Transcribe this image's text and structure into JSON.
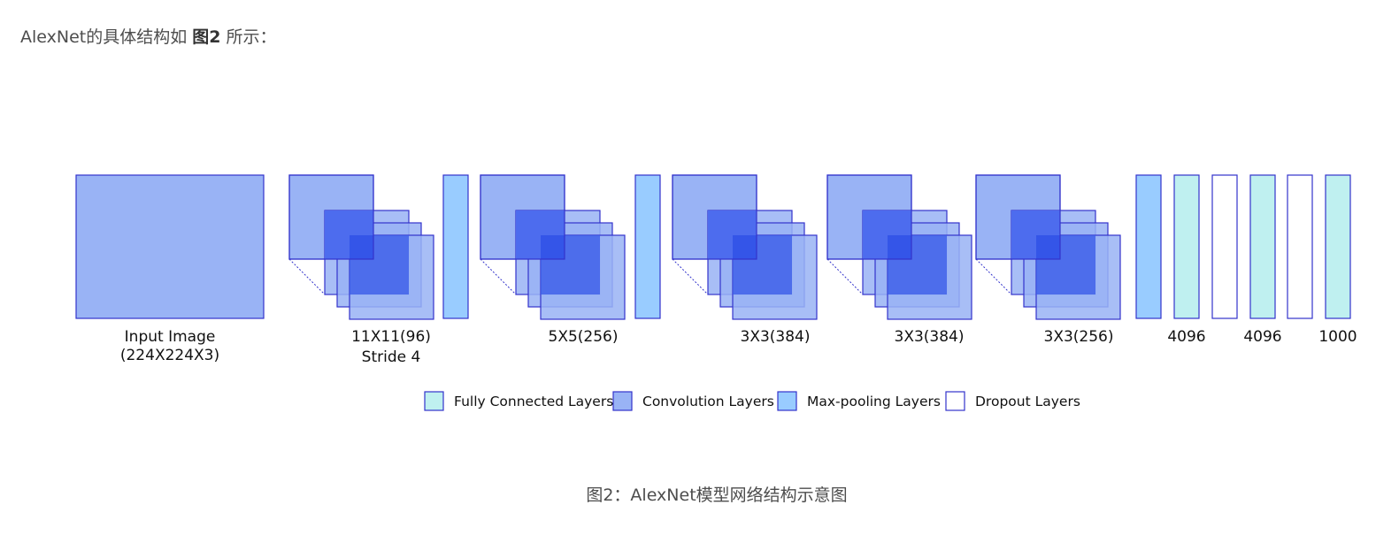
{
  "intro": {
    "prefix": "AlexNet的具体结构如 ",
    "figure_ref": "图2",
    "suffix": " 所示："
  },
  "colors": {
    "conv_fill": "#99b3f5",
    "conv_stroke": "#3333cc",
    "pool_fill": "#99ccff",
    "fc_fill": "#bff0f0",
    "dropout_fill": "#ffffff",
    "overlap_mid": "#4d6cee",
    "overlap_dark": "#1f3ce6"
  },
  "diagram": {
    "input_label_1": "Input Image",
    "input_label_2": "(224X224X3)",
    "conv1_label_1": "11X11(96)",
    "conv1_label_2": "Stride 4",
    "conv2_label": "5X5(256)",
    "conv3_label": "3X3(384)",
    "conv4_label": "3X3(384)",
    "conv5_label": "3X3(256)",
    "fc6_label": "4096",
    "fc7_label": "4096",
    "fc8_label": "1000"
  },
  "legend": [
    {
      "label": "Fully Connected Layers",
      "type": "fc"
    },
    {
      "label": "Convolution Layers",
      "type": "conv"
    },
    {
      "label": "Max-pooling Layers",
      "type": "pool"
    },
    {
      "label": "Dropout Layers",
      "type": "dropout"
    }
  ],
  "caption": "图2：AlexNet模型网络结构示意图"
}
